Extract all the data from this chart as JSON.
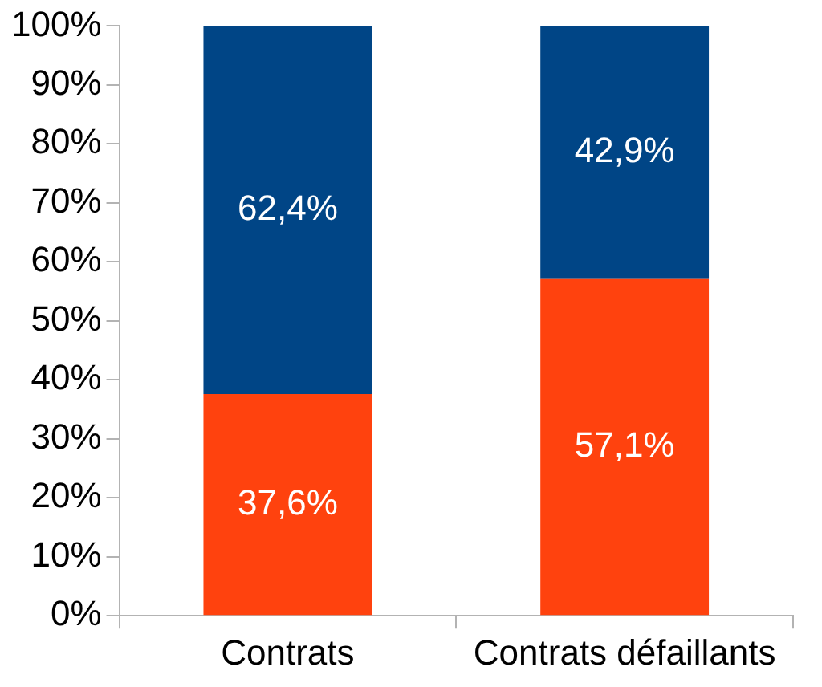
{
  "chart_data": {
    "type": "bar",
    "stacked": true,
    "categories": [
      "Contrats",
      "Contrats défaillants"
    ],
    "series": [
      {
        "color": "#ff420e",
        "values": [
          37.6,
          57.1
        ],
        "value_labels": [
          "37,6%",
          "57,1%"
        ]
      },
      {
        "color": "#004586",
        "values": [
          62.4,
          42.9
        ],
        "value_labels": [
          "62,4%",
          "42,9%"
        ]
      }
    ],
    "ylim": [
      0,
      100
    ],
    "yticks": [
      {
        "value": 0,
        "label": "0%"
      },
      {
        "value": 10,
        "label": "10%"
      },
      {
        "value": 20,
        "label": "20%"
      },
      {
        "value": 30,
        "label": "30%"
      },
      {
        "value": 40,
        "label": "40%"
      },
      {
        "value": 50,
        "label": "50%"
      },
      {
        "value": 60,
        "label": "60%"
      },
      {
        "value": 70,
        "label": "70%"
      },
      {
        "value": 80,
        "label": "80%"
      },
      {
        "value": 90,
        "label": "90%"
      },
      {
        "value": 100,
        "label": "100%"
      }
    ],
    "grid": false,
    "legend": false
  }
}
